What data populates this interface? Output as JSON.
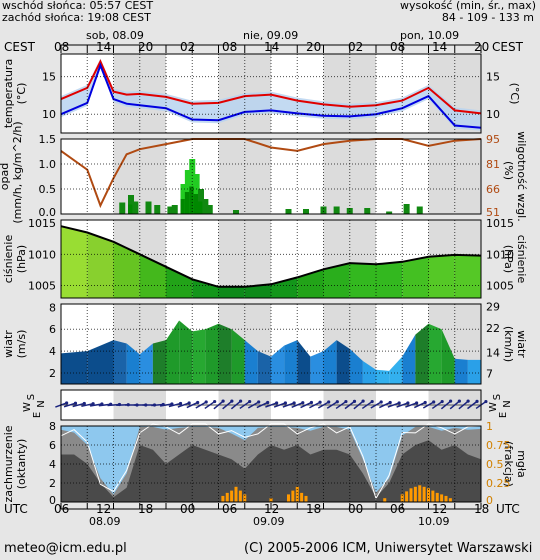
{
  "header": {
    "sunrise": "wschód słońca: 05:57 CEST",
    "sunset": "zachód słońca: 19:08 CEST",
    "height_label": "wysokość (min, śr., max)",
    "height_value": "84 - 109 - 133 m"
  },
  "top_axis": {
    "tz": "CEST",
    "hours": [
      "08",
      "14",
      "20",
      "02",
      "08",
      "14",
      "20",
      "02",
      "08",
      "14",
      "20"
    ],
    "days": [
      "sob, 08.09",
      "nie, 09.09",
      "pon, 10.09"
    ]
  },
  "bottom_axis": {
    "tz": "UTC",
    "hours": [
      "06",
      "12",
      "18",
      "00",
      "06",
      "12",
      "18",
      "00",
      "06",
      "12",
      "18"
    ],
    "dates": [
      "08.09",
      "09.09",
      "10.09"
    ]
  },
  "panels": {
    "temperature": {
      "left_label": "temperatura",
      "left_unit": "(°C)",
      "right_unit": "(°C)",
      "ticks": [
        "15",
        "10"
      ]
    },
    "precip": {
      "left_label": "opad",
      "left_unit": "(mm/h, kg/m^2/h)",
      "right_label": "wilgotność wzgl.",
      "right_unit": "(%)",
      "left_ticks": [
        "1.5",
        "1.0",
        "0.5",
        "0.0"
      ],
      "right_ticks": [
        "95",
        "81",
        "66",
        "51"
      ]
    },
    "pressure": {
      "left_label": "ciśnienie",
      "left_unit": "(hPa)",
      "right_label": "ciśnienie",
      "right_unit": "(hPa)",
      "ticks": [
        "1015",
        "1010",
        "1005"
      ]
    },
    "wind": {
      "left_label": "wiatr",
      "left_unit": "(m/s)",
      "right_label": "wiatr",
      "right_unit": "(km/h)",
      "left_ticks": [
        "8",
        "6",
        "4",
        "2"
      ],
      "right_ticks": [
        "29",
        "22",
        "14",
        "7"
      ]
    },
    "direction": {
      "label_s": "S",
      "label_w": "W",
      "label_n": "N",
      "label_e": "E"
    },
    "cloud": {
      "left_label": "zachmurzenie",
      "left_unit": "(oktanty)",
      "right_label": "mgła",
      "right_unit": "(frakcja)",
      "left_ticks": [
        "8",
        "6",
        "4",
        "2",
        "0"
      ],
      "right_ticks": [
        "1",
        "0.75",
        "0.5",
        "0.25",
        "0"
      ]
    }
  },
  "footer": {
    "email": "meteo@icm.edu.pl",
    "copyright": "(C) 2005-2006 ICM, Uniwersytet Warszawski"
  },
  "chart_data": [
    {
      "type": "line",
      "title": "temperatura",
      "ylabel": "(°C)",
      "ylim": [
        7.5,
        18
      ],
      "x_unit": "hours since 08.09 06 UTC",
      "x": [
        0,
        6,
        9,
        12,
        15,
        18,
        24,
        30,
        36,
        42,
        48,
        54,
        60,
        66,
        72,
        78,
        84,
        90,
        96
      ],
      "series": [
        {
          "name": "max",
          "color": "#e00000",
          "values": [
            12,
            13.5,
            17,
            13,
            12.6,
            12.7,
            12.3,
            11.4,
            11.5,
            12.4,
            12.6,
            11.8,
            11.3,
            11,
            11.2,
            11.8,
            13.5,
            10.5,
            10.1
          ]
        },
        {
          "name": "min",
          "color": "#0000e0",
          "values": [
            10,
            11.5,
            16.5,
            12,
            11.4,
            11.2,
            10.8,
            9.3,
            9.2,
            10.3,
            10.5,
            10.1,
            9.8,
            9.7,
            10,
            10.8,
            12.4,
            8.5,
            8.2
          ]
        }
      ]
    },
    {
      "type": "bar",
      "title": "opad",
      "ylabel": "(mm/h, kg/m^2/h)",
      "ylim": [
        0,
        1.5
      ],
      "y2label": "(%)",
      "y2lim": [
        51,
        95
      ],
      "bars": [
        [
          14,
          0.23
        ],
        [
          16,
          0.38
        ],
        [
          17,
          0.25
        ],
        [
          20,
          0.25
        ],
        [
          22,
          0.18
        ],
        [
          25,
          0.15
        ],
        [
          26,
          0.18
        ],
        [
          28,
          0.6
        ],
        [
          29,
          0.88
        ],
        [
          30,
          1.1
        ],
        [
          31,
          0.8
        ],
        [
          32,
          0.5
        ],
        [
          33,
          0.3
        ],
        [
          34,
          0.18
        ],
        [
          40,
          0.08
        ],
        [
          52,
          0.1
        ],
        [
          56,
          0.1
        ],
        [
          60,
          0.15
        ],
        [
          63,
          0.15
        ],
        [
          66,
          0.12
        ],
        [
          70,
          0.12
        ],
        [
          75,
          0.05
        ],
        [
          79,
          0.2
        ],
        [
          82,
          0.15
        ]
      ],
      "humidity": {
        "x": [
          0,
          6,
          9,
          12,
          15,
          18,
          24,
          30,
          36,
          42,
          48,
          54,
          60,
          66,
          72,
          78,
          84,
          90,
          96
        ],
        "values": [
          88,
          77,
          56,
          72,
          86,
          89,
          92,
          95,
          95,
          95,
          90,
          88,
          92,
          94,
          95,
          95,
          91,
          94,
          95
        ]
      }
    },
    {
      "type": "area",
      "title": "ciśnienie",
      "ylabel": "(hPa)",
      "ylim": [
        1003,
        1015.5
      ],
      "x": [
        0,
        6,
        12,
        18,
        24,
        30,
        36,
        42,
        48,
        54,
        60,
        66,
        72,
        78,
        84,
        90,
        96
      ],
      "values": [
        1014.5,
        1013.5,
        1012,
        1010,
        1008,
        1006,
        1004.8,
        1004.8,
        1005.2,
        1006.3,
        1007.6,
        1008.6,
        1008.4,
        1008.8,
        1009.6,
        1009.9,
        1009.8
      ]
    },
    {
      "type": "area",
      "title": "wiatr",
      "ylabel": "(m/s)",
      "ylim": [
        1,
        8.3
      ],
      "x": [
        0,
        6,
        12,
        15,
        18,
        21,
        24,
        27,
        30,
        33,
        36,
        39,
        42,
        45,
        48,
        51,
        54,
        57,
        60,
        63,
        66,
        69,
        72,
        75,
        78,
        81,
        84,
        87,
        90,
        93,
        96
      ],
      "values": [
        3.8,
        4,
        5,
        4.7,
        3.7,
        4.7,
        5,
        6.8,
        5.8,
        6,
        6.5,
        6,
        5,
        4,
        3.5,
        4.5,
        5,
        3.5,
        4,
        5,
        4.2,
        3.1,
        2.3,
        2.2,
        3.5,
        5.5,
        6.5,
        6,
        3.3,
        3.2,
        3.2
      ]
    },
    {
      "type": "scatter",
      "title": "kierunek wiatru",
      "x_unit": "hours since 08.09 06 UTC",
      "x": [
        0,
        4,
        8,
        12,
        16,
        20,
        24,
        28,
        32,
        36,
        40,
        44,
        48,
        52,
        56,
        60,
        64,
        68,
        72,
        76,
        80,
        84,
        88,
        92,
        96
      ],
      "direction_deg": [
        250,
        255,
        260,
        265,
        270,
        270,
        260,
        250,
        240,
        230,
        230,
        240,
        250,
        250,
        245,
        240,
        235,
        230,
        240,
        250,
        250,
        240,
        230,
        230,
        235
      ]
    },
    {
      "type": "area",
      "title": "zachmurzenie",
      "ylabel": "(oktanty)",
      "ylim": [
        0,
        8
      ],
      "y2label": "(frakcja)",
      "y2lim": [
        0,
        1
      ],
      "x": [
        0,
        3,
        6,
        9,
        12,
        15,
        18,
        21,
        24,
        27,
        30,
        33,
        36,
        39,
        42,
        45,
        48,
        51,
        54,
        57,
        60,
        63,
        66,
        69,
        72,
        75,
        78,
        81,
        84,
        87,
        90,
        93,
        96
      ],
      "series": [
        {
          "name": "total",
          "values": [
            7.6,
            7.3,
            6,
            2.5,
            0.8,
            3,
            7.9,
            7.9,
            7.6,
            7.8,
            7.9,
            7.9,
            7.8,
            7.2,
            6.5,
            7.8,
            7.9,
            7.9,
            7.8,
            7.5,
            7.9,
            7.9,
            7.6,
            4.5,
            1,
            2.5,
            7,
            7.9,
            7.9,
            7.5,
            7.8,
            7.6,
            7.7
          ]
        },
        {
          "name": "low",
          "values": [
            5,
            5,
            4,
            2,
            0.5,
            1.5,
            6,
            5.5,
            4,
            5,
            6,
            5.5,
            5,
            4.5,
            3.5,
            5,
            6,
            5.5,
            6,
            5,
            5.5,
            5.5,
            5,
            3,
            0.5,
            2,
            5,
            6,
            6.5,
            5.5,
            6,
            5,
            4.5
          ]
        }
      ],
      "fog_bars": [
        [
          37,
          0.08
        ],
        [
          38,
          0.12
        ],
        [
          39,
          0.15
        ],
        [
          40,
          0.2
        ],
        [
          41,
          0.15
        ],
        [
          42,
          0.1
        ],
        [
          48,
          0.05
        ],
        [
          52,
          0.1
        ],
        [
          53,
          0.15
        ],
        [
          54,
          0.2
        ],
        [
          55,
          0.12
        ],
        [
          56,
          0.08
        ],
        [
          74,
          0.05
        ],
        [
          78,
          0.1
        ],
        [
          79,
          0.14
        ],
        [
          80,
          0.18
        ],
        [
          81,
          0.2
        ],
        [
          82,
          0.22
        ],
        [
          83,
          0.2
        ],
        [
          84,
          0.18
        ],
        [
          85,
          0.15
        ],
        [
          86,
          0.12
        ],
        [
          87,
          0.1
        ],
        [
          88,
          0.08
        ],
        [
          89,
          0.05
        ]
      ]
    }
  ]
}
